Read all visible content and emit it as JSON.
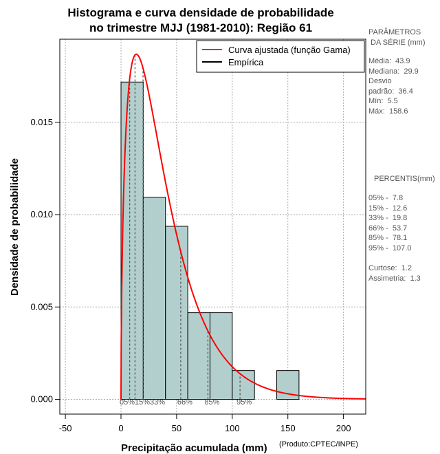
{
  "title": {
    "line1": "Histograma e curva densidade de probabilidade",
    "line2": "no trimestre MJJ (1981-2010): Região 61"
  },
  "chart_data": {
    "type": "bar",
    "xlabel": "Precipitação acumulada (mm)",
    "ylabel": "Densidade de probabilidade",
    "xlim": [
      -55,
      220
    ],
    "ylim": [
      -0.0008,
      0.0195
    ],
    "xticks": [
      -50,
      0,
      50,
      100,
      150,
      200
    ],
    "yticks": [
      0.0,
      0.005,
      0.01,
      0.015
    ],
    "ytick_labels": [
      "0.000",
      "0.005",
      "0.010",
      "0.015"
    ],
    "grid": true,
    "bins": [
      {
        "x0": 0,
        "x1": 20,
        "density": 0.01718
      },
      {
        "x0": 20,
        "x1": 40,
        "density": 0.01094
      },
      {
        "x0": 40,
        "x1": 60,
        "density": 0.00937
      },
      {
        "x0": 60,
        "x1": 80,
        "density": 0.00469
      },
      {
        "x0": 80,
        "x1": 100,
        "density": 0.00469
      },
      {
        "x0": 100,
        "x1": 120,
        "density": 0.00156
      },
      {
        "x0": 120,
        "x1": 140,
        "density": 0
      },
      {
        "x0": 140,
        "x1": 160,
        "density": 0.00156
      }
    ],
    "gamma_fit": {
      "shape": 1.55,
      "scale": 25.0,
      "label": "Curva ajustada (função Gama)"
    },
    "legend": {
      "position": "top-right",
      "items": [
        {
          "label": "Curva ajustada (função Gama)",
          "color": "#ff0000"
        },
        {
          "label": "Empírica",
          "color": "#000000"
        }
      ]
    },
    "percentile_lines": [
      {
        "value": 7.8,
        "label": "05%"
      },
      {
        "value": 12.6,
        "label": "15%"
      },
      {
        "value": 19.8,
        "label": "33%"
      },
      {
        "value": 53.7,
        "label": "66%"
      },
      {
        "value": 78.1,
        "label": "85%"
      },
      {
        "value": 107.0,
        "label": "95%"
      }
    ],
    "percentile_tick_label": "05%15%33%"
  },
  "side_panel": {
    "params_title": "PARÂMETROS\n DA SÉRIE (mm)",
    "params_body": "Média:  43.9\nMediana:  29.9\nDesvio\npadrão:  36.4\nMín:  5.5\nMáx:  158.6",
    "percentis_title": "PERCENTIS(mm)",
    "percentis_body": "05% -  7.8\n15% -  12.6\n33% -  19.8\n66% -  53.7\n85% -  78.1\n95% -  107.0",
    "stats_body": "Curtose:  1.2\nAssimetria:  1.3"
  },
  "credit": "(Produto:CPTEC/INPE)",
  "colors": {
    "bar_fill": "#b3cfcd",
    "curve": "#ff0000",
    "grid": "#aaaaaa",
    "pct_line": "#555555"
  }
}
